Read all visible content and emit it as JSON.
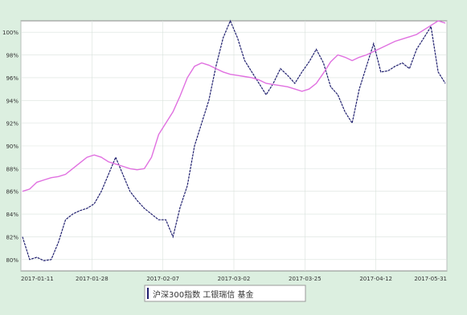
{
  "colors": {
    "background": "#dcefe0",
    "plot_bg": "#ffffff",
    "dark_series": "#1f1f6e",
    "pink_series": "#e070e0",
    "grid": "#d9e2dc"
  },
  "chart_data": {
    "type": "line",
    "title": "",
    "xlabel": "",
    "ylabel": "",
    "x_tick_labels": [
      "2017-01-11",
      "2017-01-28",
      "2017-02-07",
      "2017-03-02",
      "2017-03-25",
      "2017-04-12",
      "2017-05-31"
    ],
    "y_tick_labels": [
      "80%",
      "82%",
      "84%",
      "86%",
      "88%",
      "90%",
      "92%",
      "94%",
      "96%",
      "98%",
      "100%"
    ],
    "ylim": [
      79,
      101
    ],
    "grid": true,
    "legend_position": "bottom",
    "legend_text": "沪深300指数 工银瑞信  基金",
    "series": [
      {
        "name": "",
        "color": "#1f1f6e",
        "values": [
          82,
          80,
          80.2,
          79.9,
          80,
          81.5,
          83.5,
          84,
          84.3,
          84.5,
          84.9,
          86,
          87.5,
          89,
          87.5,
          86,
          85.2,
          84.5,
          84,
          83.5,
          83.5,
          82,
          84.6,
          86.5,
          90,
          92,
          94,
          97,
          99.5,
          101,
          99.5,
          97.5,
          96.5,
          95.5,
          94.5,
          95.5,
          96.8,
          96.2,
          95.5,
          96.5,
          97.4,
          98.5,
          97.3,
          95.2,
          94.5,
          93,
          92,
          95,
          97,
          99,
          96.5,
          96.6,
          97,
          97.3,
          96.8,
          98.5,
          99.5,
          100.5,
          96.5,
          95.5
        ]
      },
      {
        "name": "",
        "color": "#e070e0",
        "values": [
          86,
          86.2,
          86.8,
          87,
          87.2,
          87.3,
          87.5,
          88,
          88.5,
          89,
          89.2,
          89,
          88.6,
          88.4,
          88.2,
          88,
          87.9,
          88,
          89,
          91,
          92,
          93,
          94.4,
          96,
          97,
          97.3,
          97.1,
          96.8,
          96.5,
          96.3,
          96.2,
          96.1,
          96,
          95.8,
          95.5,
          95.4,
          95.3,
          95.2,
          95,
          94.8,
          95,
          95.5,
          96.4,
          97.4,
          98,
          97.8,
          97.5,
          97.8,
          98,
          98.3,
          98.6,
          98.9,
          99.2,
          99.4,
          99.6,
          99.8,
          100.2,
          100.6,
          101,
          100.8
        ]
      }
    ]
  }
}
